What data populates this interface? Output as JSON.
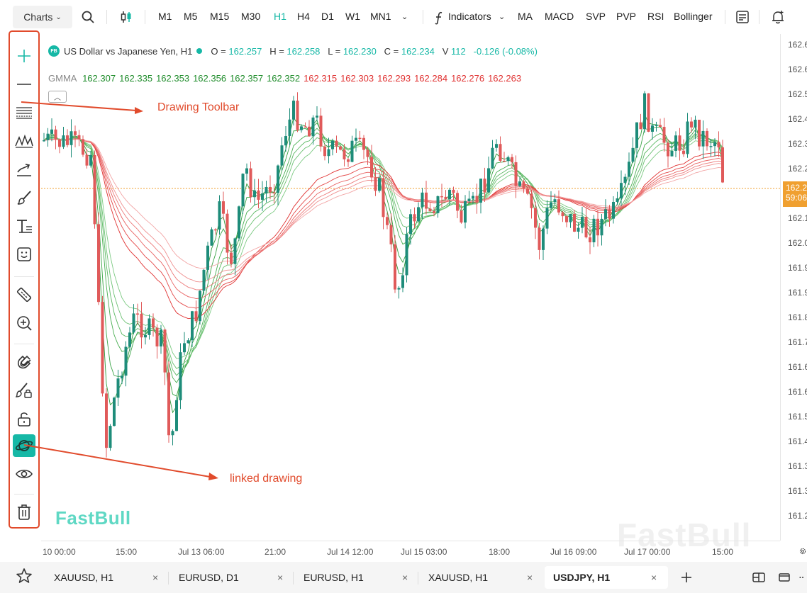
{
  "topbar": {
    "charts_label": "Charts",
    "timeframes": [
      "M1",
      "M5",
      "M15",
      "M30",
      "H1",
      "H4",
      "D1",
      "W1",
      "MN1"
    ],
    "active_timeframe": "H1",
    "indicators_label": "Indicators",
    "indicator_shortcuts": [
      "MA",
      "MACD",
      "SVP",
      "PVP",
      "RSI",
      "Bollinger"
    ]
  },
  "legend": {
    "logo": "FB",
    "symbol": "US Dollar vs Japanese Yen, H1",
    "open_label": "O =",
    "open": "162.257",
    "high_label": "H =",
    "high": "162.258",
    "low_label": "L =",
    "low": "162.230",
    "close_label": "C =",
    "close": "162.234",
    "volume_label": "V",
    "volume": "112",
    "change": "-0.126 (-0.08%)"
  },
  "gmma": {
    "label": "GMMA",
    "short_values": [
      "162.307",
      "162.335",
      "162.353",
      "162.356",
      "162.357",
      "162.352"
    ],
    "long_values": [
      "162.315",
      "162.303",
      "162.293",
      "162.284",
      "162.276",
      "162.263"
    ]
  },
  "price_axis": [
    "162.6",
    "162.6",
    "162.5",
    "162.4",
    "162.3",
    "162.2",
    "162.1",
    "162.0",
    "161.9",
    "161.9",
    "161.8",
    "161.7",
    "161.6",
    "161.6",
    "161.5",
    "161.4",
    "161.3",
    "161.3",
    "161.2"
  ],
  "current_price_tag": {
    "price": "162.2",
    "countdown": "59:06"
  },
  "time_axis": [
    "10 00:00",
    "15:00",
    "Jul 13 06:00",
    "21:00",
    "Jul 14 12:00",
    "Jul 15 03:00",
    "18:00",
    "Jul 16 09:00",
    "Jul 17 00:00",
    "15:00"
  ],
  "annotations": {
    "drawing_toolbar": "Drawing Toolbar",
    "linked_drawing": "linked drawing"
  },
  "watermark": "FastBull",
  "tabs": [
    {
      "label": "XAUUSD, H1"
    },
    {
      "label": "EURUSD, D1"
    },
    {
      "label": "EURUSD, H1"
    },
    {
      "label": "XAUUSD, H1"
    },
    {
      "label": "USDJPY, H1"
    }
  ],
  "active_tab": "USDJPY, H1",
  "colors": {
    "accent": "#16b8a6",
    "bull": "#1e8c7a",
    "bear": "#e05a5a",
    "annotation": "#e14b2c",
    "price_tag": "#f0a030"
  },
  "icons": {
    "left_toolbar": [
      "crosshair-icon",
      "horizontal-line-icon",
      "fibonacci-icon",
      "pattern-icon",
      "trend-arrow-icon",
      "brush-icon",
      "text-icon",
      "emoji-icon",
      "ruler-icon",
      "zoom-in-icon",
      "magnet-icon",
      "lock-drawing-icon",
      "unlock-icon",
      "linked-drawing-icon",
      "eye-icon",
      "trash-icon"
    ]
  }
}
